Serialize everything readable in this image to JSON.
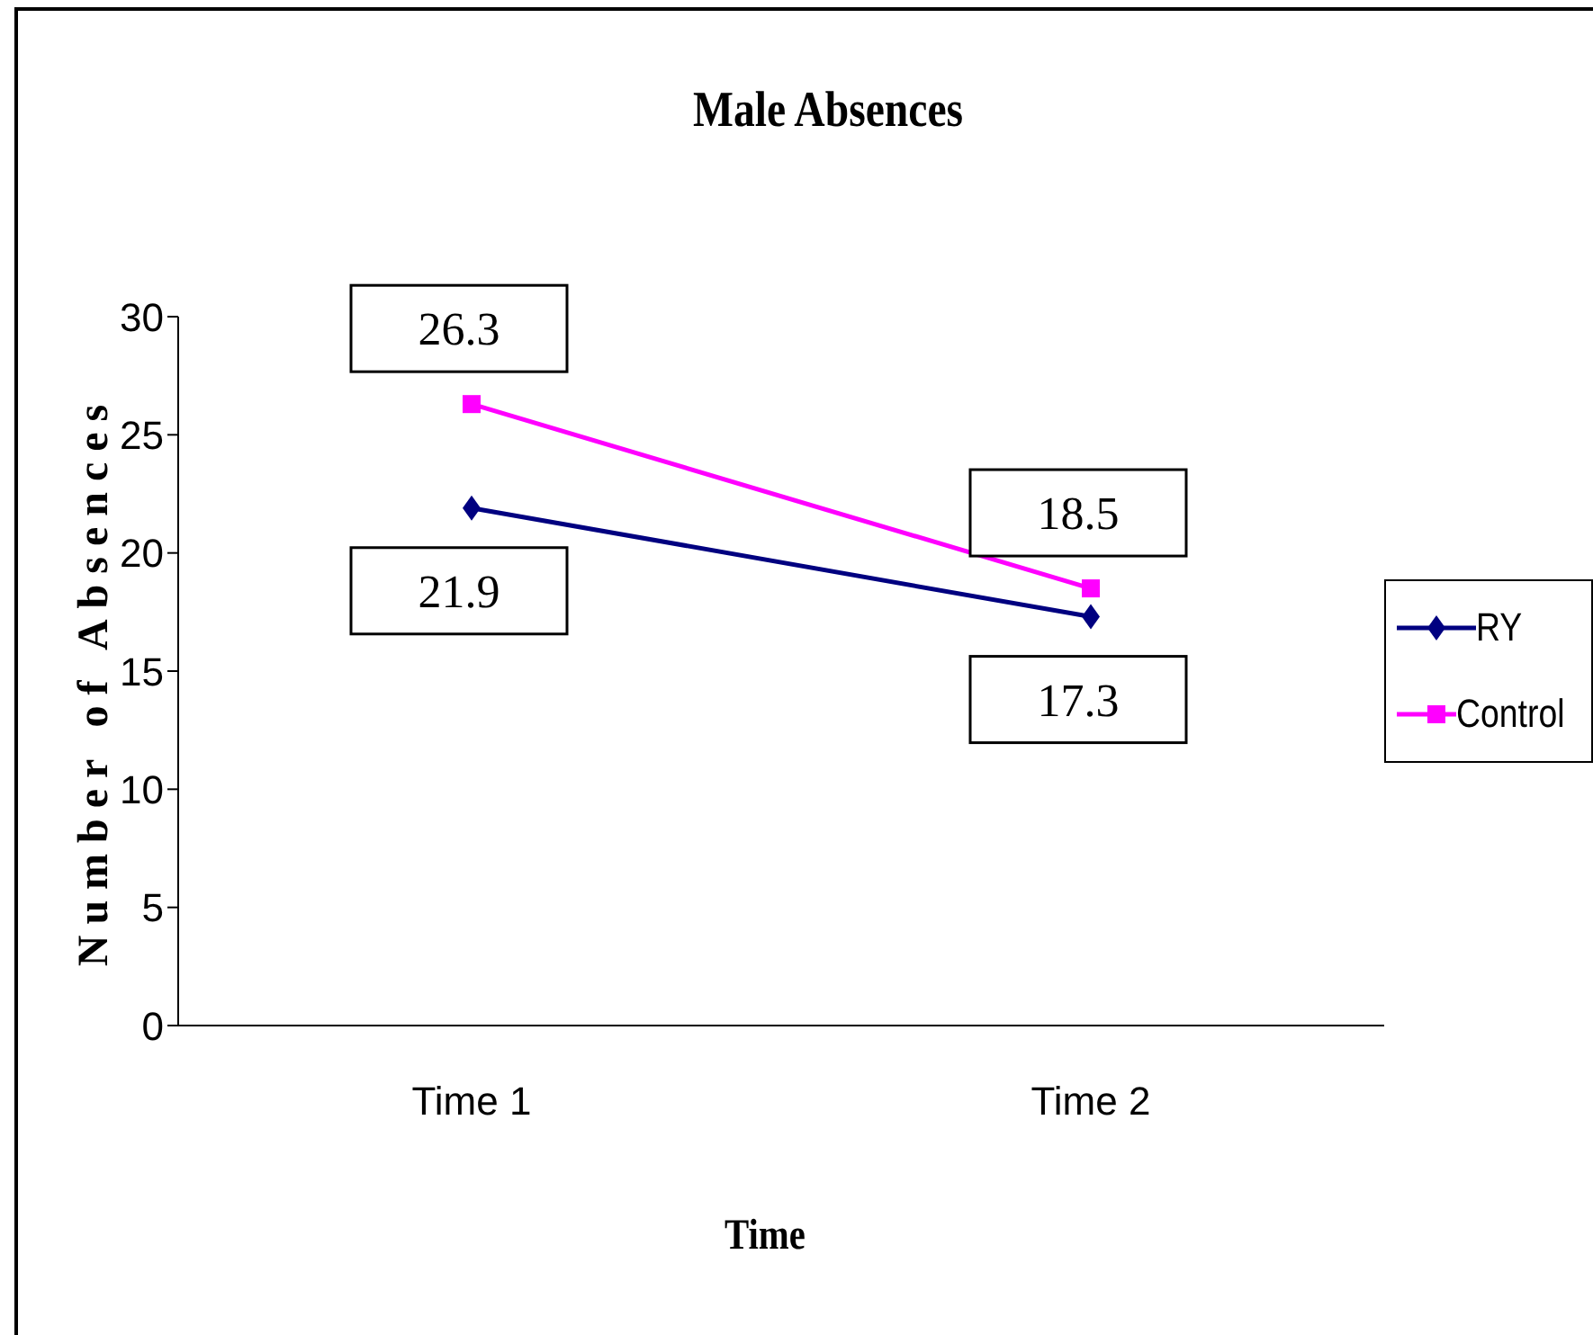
{
  "chart_data": {
    "type": "line",
    "title": "Male Absences",
    "xlabel": "Time",
    "ylabel": "Number of Absences",
    "categories": [
      "Time 1",
      "Time 2"
    ],
    "series": [
      {
        "name": "RY",
        "color": "#000080",
        "values": [
          21.9,
          17.3
        ],
        "marker": "diamond"
      },
      {
        "name": "Control",
        "color": "#ff00ff",
        "values": [
          26.3,
          18.5
        ],
        "marker": "square"
      }
    ],
    "ylim": [
      0,
      30
    ],
    "yticks": [
      0,
      5,
      10,
      15,
      20,
      25,
      30
    ],
    "grid": false,
    "legend": "right",
    "data_labels": true,
    "line_style": "solid"
  }
}
